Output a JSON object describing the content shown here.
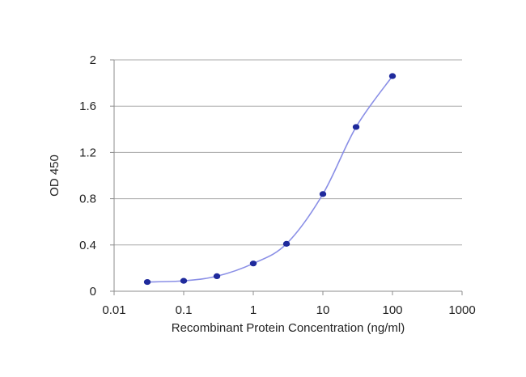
{
  "chart_data": {
    "type": "line",
    "title": "",
    "xlabel": "Recombinant Protein Concentration (ng/ml)",
    "ylabel": "OD 450",
    "x_scale": "log",
    "xlim": [
      0.01,
      1000
    ],
    "ylim": [
      0,
      2
    ],
    "x_ticks": [
      0.01,
      0.1,
      1,
      10,
      100,
      1000
    ],
    "x_tick_labels": [
      "0.01",
      "0.1",
      "1",
      "10",
      "100",
      "1000"
    ],
    "y_ticks": [
      0,
      0.4,
      0.8,
      1.2,
      1.6,
      2
    ],
    "y_tick_labels": [
      "0",
      "0.4",
      "0.8",
      "1.2",
      "1.6",
      "2"
    ],
    "grid": "horizontal",
    "legend": "none",
    "series": [
      {
        "x": [
          0.03,
          0.1,
          0.3,
          1,
          3,
          10,
          30,
          100
        ],
        "y": [
          0.08,
          0.09,
          0.13,
          0.24,
          0.41,
          0.84,
          1.42,
          1.86
        ]
      }
    ],
    "colors": {
      "line": "#8a8fe6",
      "marker": "#1f2a9c",
      "grid": "#a8a8a8",
      "axis": "#8c8c8c"
    }
  }
}
